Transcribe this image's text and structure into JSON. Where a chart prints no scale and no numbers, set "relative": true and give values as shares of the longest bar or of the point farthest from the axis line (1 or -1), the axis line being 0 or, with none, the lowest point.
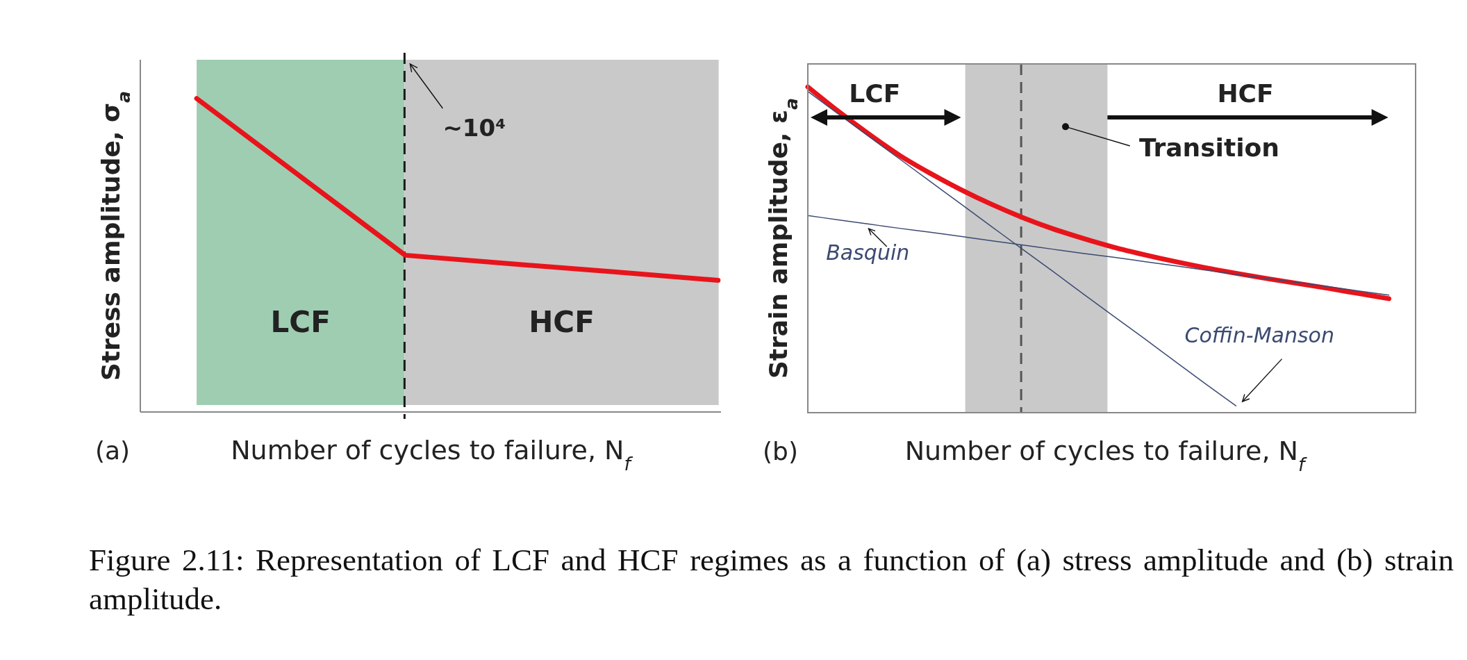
{
  "chart_data": [
    {
      "type": "line",
      "xlabel": "Number of cycles to failure, N$_{f}$",
      "ylabel": "Stress amplitude, σ$_{a}$",
      "relative": true,
      "categories": [
        null,
        null,
        null,
        null,
        null,
        null
      ],
      "series": [
        {
          "color": "#e8141b",
          "values": [
            1,
            0.75,
            0.5,
            0.473,
            0.447,
            0.42
          ]
        }
      ],
      "annotations": [
        "(a)",
        "LCF",
        "HCF",
        "~10⁴"
      ]
    },
    {
      "type": "line",
      "xlabel": "Number of cycles to failure, N$_{f}$",
      "ylabel": "Strain amplitude, ε$_{a}$",
      "relative": true,
      "categories": [
        null,
        null,
        null,
        null,
        null,
        null,
        null,
        null,
        null,
        null,
        null,
        null,
        null,
        null,
        null,
        null,
        null,
        null,
        null,
        null
      ],
      "series": [
        {
          "color": "#e8141b",
          "values": [
            1,
            0.925,
            0.855,
            0.79,
            0.735,
            0.685,
            0.64,
            0.6,
            0.565,
            0.535,
            0.508,
            0.485,
            0.464,
            0.445,
            0.428,
            0.412,
            0.397,
            0.382,
            0.366,
            0.35
          ]
        },
        {
          "name": "Basquin",
          "color": "#3b4a72",
          "values": [
            0.605,
            0.592,
            0.579,
            0.566,
            0.554,
            0.541,
            0.528,
            0.515,
            0.502,
            0.489,
            0.477,
            0.464,
            0.451,
            0.438,
            0.425,
            0.412,
            0.4,
            0.387,
            0.374,
            0.361
          ]
        },
        {
          "name": "Coffin-Manson",
          "color": "#3b4a72",
          "values": [
            0.986,
            0.917,
            0.848,
            0.779,
            0.71,
            0.641,
            0.572,
            0.503,
            0.435,
            0.365,
            0.296,
            0.228,
            0.158,
            0.089,
            0.021,
            null,
            null,
            null,
            null,
            null
          ]
        }
      ],
      "annotations": [
        "(b)",
        "LCF",
        "HCF",
        "Transition",
        "Figure 2.11: Representation of LCF and HCF regimes as a function of (a) stress amplitude and (b) strain amplitude."
      ]
    }
  ]
}
